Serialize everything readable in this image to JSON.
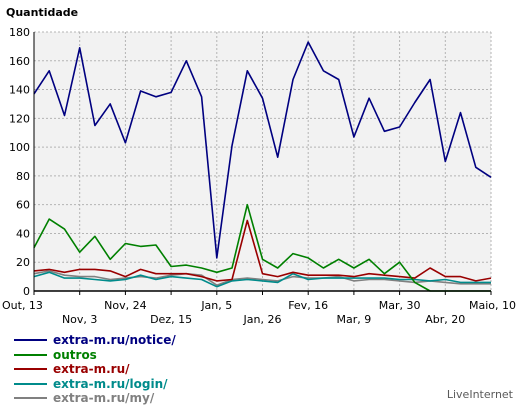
{
  "chart_data": {
    "type": "line",
    "title": "Quantidade",
    "ylim": [
      0,
      180
    ],
    "yticks": [
      0,
      20,
      40,
      60,
      80,
      100,
      120,
      140,
      160,
      180
    ],
    "x_top_labels": [
      "Out, 13",
      "Nov, 24",
      "Jan, 5",
      "Fev, 16",
      "Mar, 30",
      "Maio, 10"
    ],
    "x_bottom_labels": [
      "Nov, 3",
      "Dez, 15",
      "Jan, 26",
      "Mar, 9",
      "Abr, 20"
    ],
    "grid": true,
    "legend_position": "bottom-left",
    "series": [
      {
        "name": "extra-m.ru/notice/",
        "color": "#000080",
        "values": [
          137,
          153,
          122,
          169,
          115,
          130,
          103,
          139,
          135,
          138,
          160,
          135,
          23,
          101,
          153,
          134,
          93,
          147,
          173,
          153,
          147,
          107,
          134,
          111,
          114,
          131,
          147,
          90,
          124,
          86,
          79
        ]
      },
      {
        "name": "outros",
        "color": "#008000",
        "values": [
          30,
          50,
          43,
          27,
          38,
          22,
          33,
          31,
          32,
          17,
          18,
          16,
          13,
          16,
          60,
          22,
          16,
          26,
          23,
          16,
          22,
          16,
          22,
          12,
          20,
          6,
          0,
          0,
          0,
          0,
          0
        ]
      },
      {
        "name": "extra-m.ru/",
        "color": "#990000",
        "values": [
          14,
          15,
          13,
          15,
          15,
          14,
          10,
          15,
          12,
          12,
          12,
          10,
          7,
          8,
          49,
          12,
          10,
          13,
          11,
          11,
          11,
          10,
          12,
          11,
          10,
          9,
          16,
          10,
          10,
          7,
          9
        ]
      },
      {
        "name": "extra-m.ru/login/",
        "color": "#008B8B",
        "values": [
          10,
          13,
          9,
          9,
          8,
          7,
          8,
          11,
          8,
          10,
          9,
          8,
          3,
          7,
          8,
          7,
          6,
          12,
          8,
          9,
          9,
          9,
          9,
          9,
          8,
          8,
          7,
          8,
          6,
          6,
          6
        ]
      },
      {
        "name": "extra-m.ru/my/",
        "color": "#808080",
        "values": [
          12,
          14,
          11,
          10,
          10,
          8,
          9,
          10,
          9,
          11,
          12,
          11,
          4,
          8,
          9,
          8,
          7,
          10,
          9,
          9,
          10,
          7,
          8,
          8,
          7,
          6,
          7,
          6,
          5,
          5,
          5
        ]
      }
    ]
  },
  "branding": "LiveInternet"
}
